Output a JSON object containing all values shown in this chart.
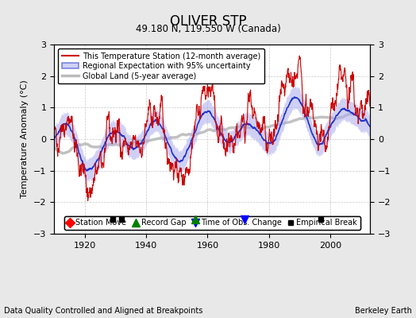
{
  "title": "OLIVER STP",
  "subtitle": "49.180 N, 119.550 W (Canada)",
  "ylabel": "Temperature Anomaly (°C)",
  "footer_left": "Data Quality Controlled and Aligned at Breakpoints",
  "footer_right": "Berkeley Earth",
  "xlim": [
    1910,
    2013
  ],
  "ylim": [
    -3,
    3
  ],
  "yticks": [
    -3,
    -2,
    -1,
    0,
    1,
    2,
    3
  ],
  "xticks": [
    1920,
    1940,
    1960,
    1980,
    2000
  ],
  "year_start": 1910,
  "year_end": 2012,
  "seed": 42,
  "background_color": "#e8e8e8",
  "plot_bg_color": "#ffffff",
  "grid_color": "#bbbbbb",
  "line_color_station": "#cc0000",
  "band_color_regional": "#aaaaee",
  "line_color_regional": "#2233cc",
  "line_color_global": "#bbbbbb",
  "marker_record_gap": {
    "x": [
      1956
    ],
    "color": "green",
    "marker": "^",
    "size": 7
  },
  "marker_obs_change": {
    "x": [
      1972
    ],
    "color": "blue",
    "marker": "v",
    "size": 7
  },
  "marker_emp_break": {
    "x": [
      1929,
      1932,
      1997
    ],
    "color": "black",
    "marker": "s",
    "size": 5
  },
  "legend_items": [
    {
      "label": "This Temperature Station (12-month average)",
      "color": "#cc0000",
      "lw": 1.5
    },
    {
      "label": "Regional Expectation with 95% uncertainty",
      "color": "#2233cc",
      "lw": 1.5
    },
    {
      "label": "Global Land (5-year average)",
      "color": "#bbbbbb",
      "lw": 2.5
    }
  ]
}
